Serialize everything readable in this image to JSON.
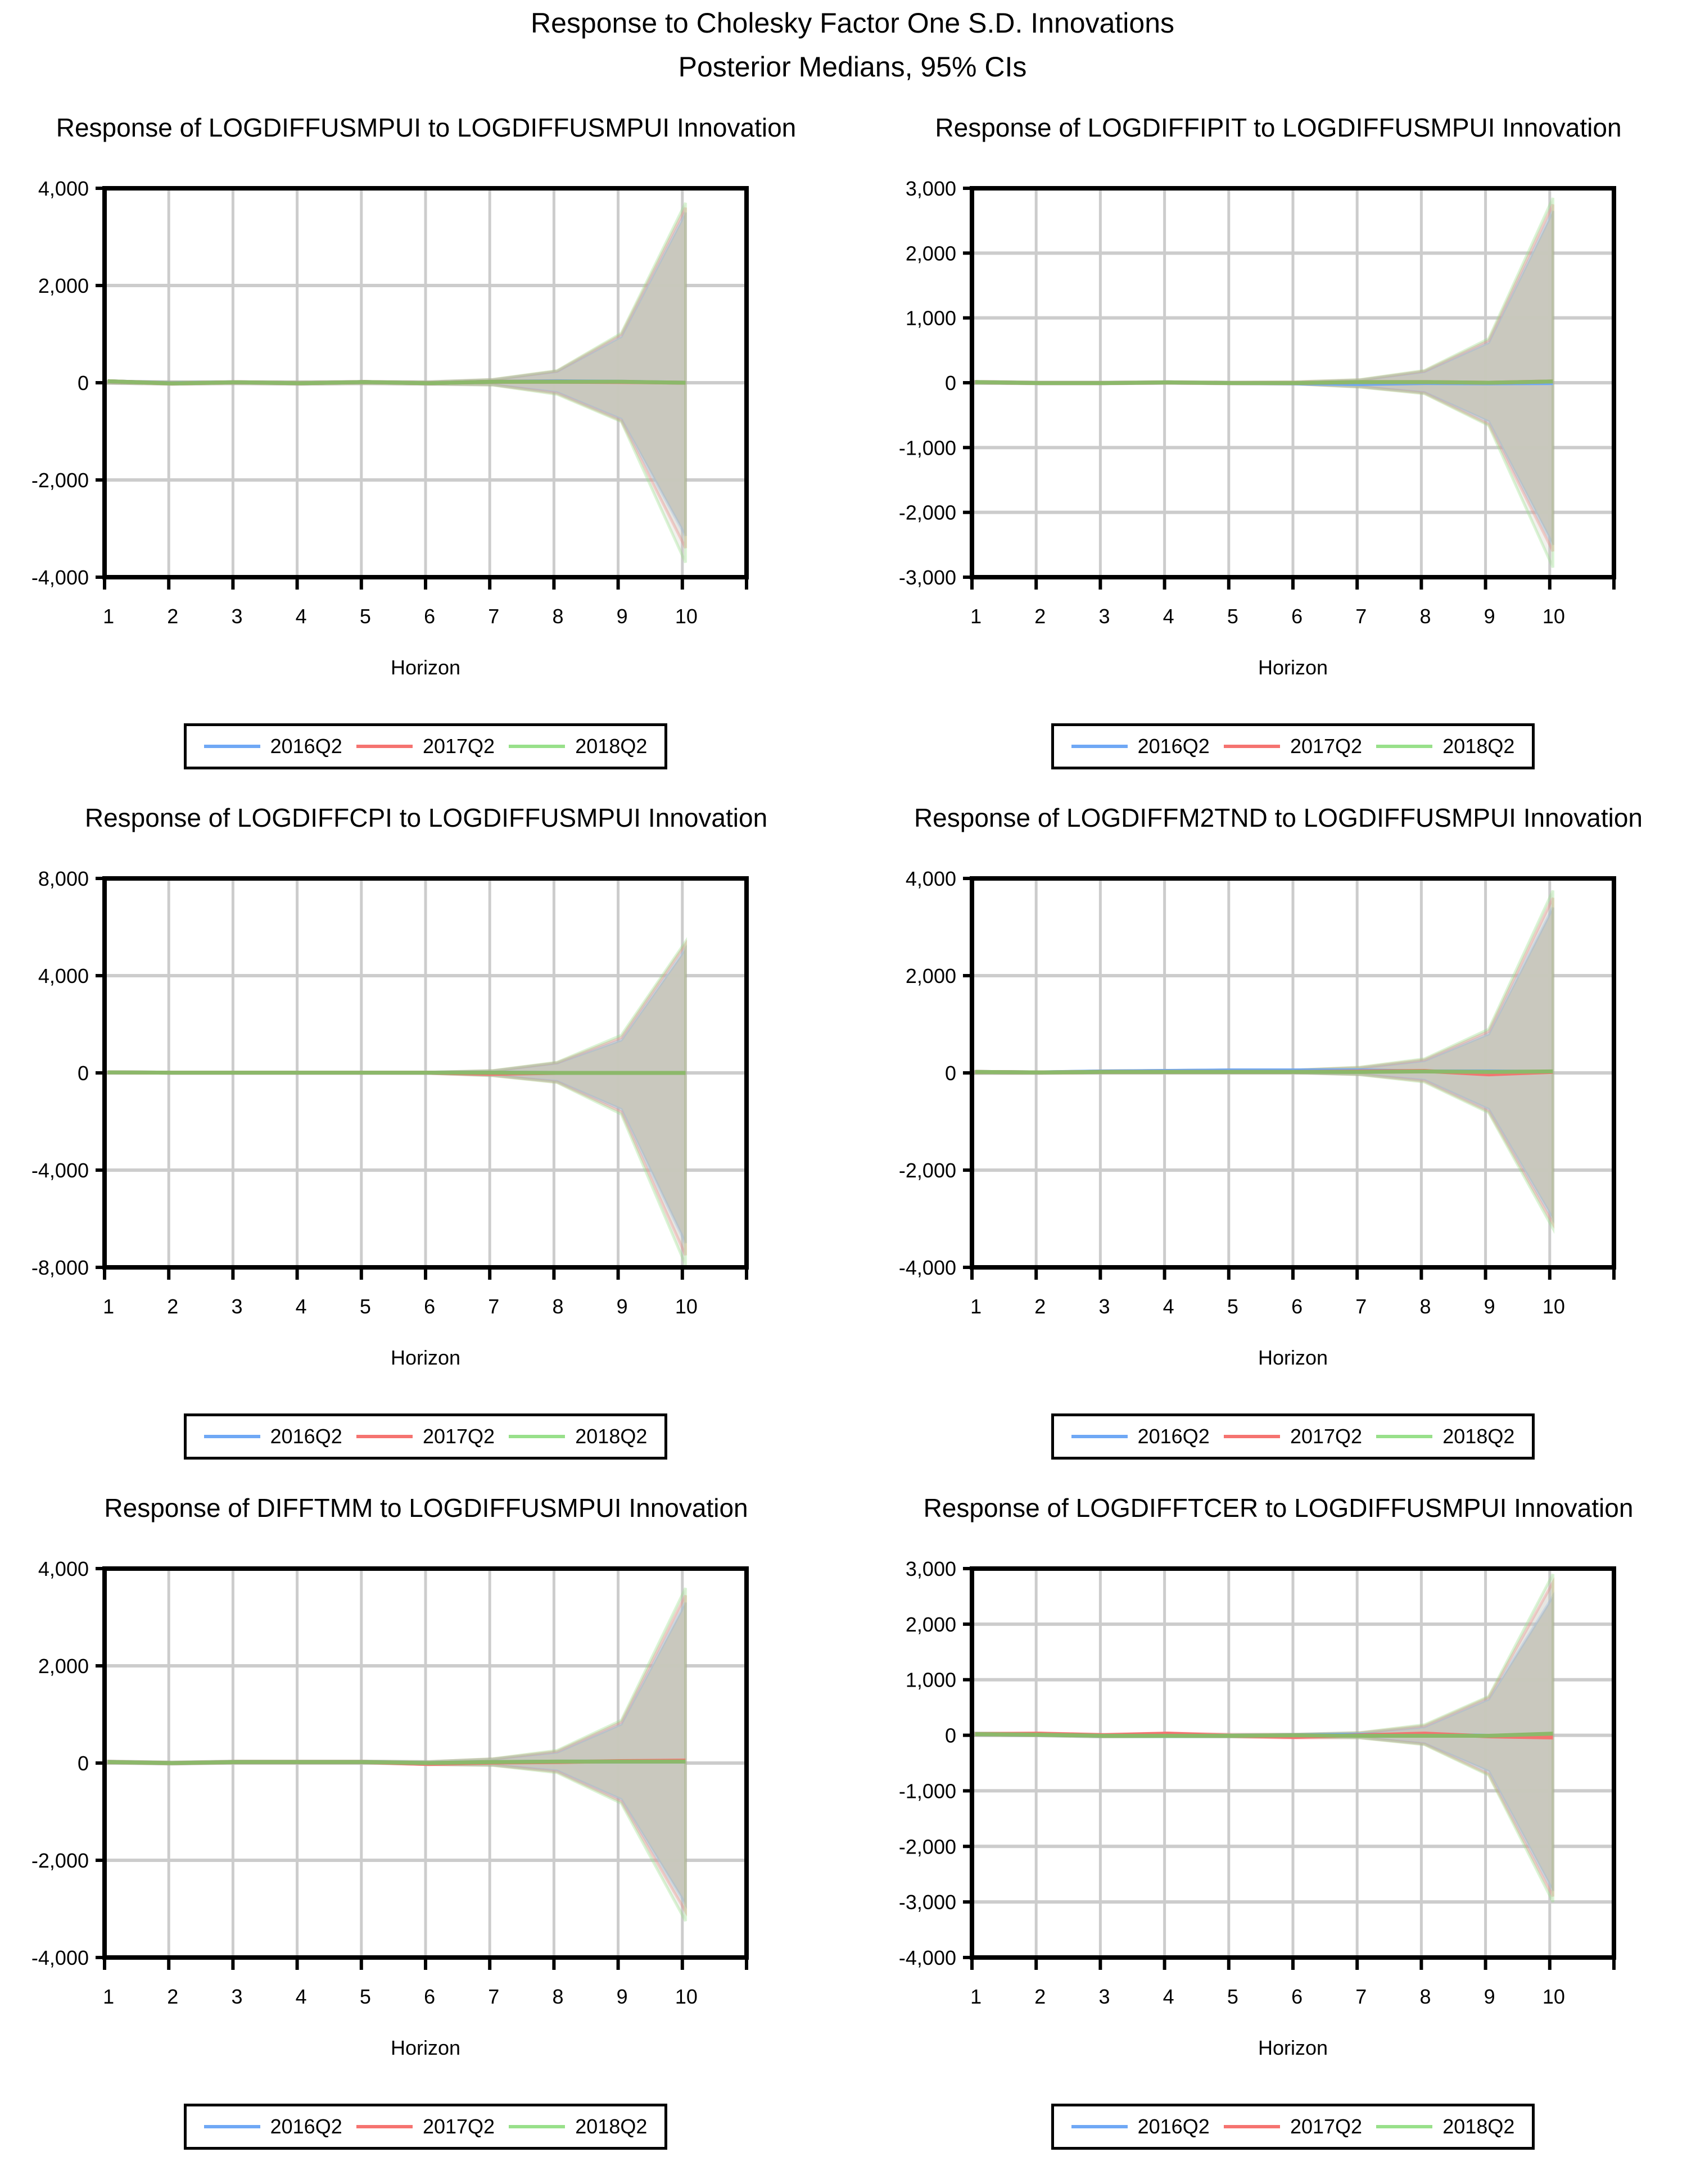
{
  "header": {
    "title": "Response to Cholesky Factor One S.D. Innovations",
    "subtitle": "Posterior Medians, 95% CIs"
  },
  "legend": {
    "items": [
      {
        "label": "2016Q2",
        "color": "#6fa8f5"
      },
      {
        "label": "2017Q2",
        "color": "#f57370"
      },
      {
        "label": "2018Q2",
        "color": "#98e08a"
      }
    ]
  },
  "colors": {
    "band_fill": "#c8c7bd",
    "grid": "#cccccc",
    "frame": "#000000",
    "median_overlay": "#8cb86a"
  },
  "chart_data": [
    {
      "type": "line",
      "title": "Response of LOGDIFFUSMPUI to LOGDIFFUSMPUI Innovation",
      "xlabel": "Horizon",
      "ylabel": "",
      "x": [
        1,
        2,
        3,
        4,
        5,
        6,
        7,
        8,
        9,
        10
      ],
      "yticks": [
        4000,
        2000,
        0,
        -2000,
        -4000
      ],
      "ytick_labels": [
        "4,000",
        "2,000",
        "0",
        "-2,000",
        "-4,000"
      ],
      "ylim": [
        -4000,
        4000
      ],
      "grid": true,
      "legend_position": "bottom",
      "series": [
        {
          "name": "2016Q2",
          "median": [
            30,
            -10,
            10,
            -10,
            15,
            -10,
            20,
            30,
            20,
            0
          ],
          "upper": [
            30,
            20,
            20,
            20,
            25,
            20,
            60,
            230,
            950,
            3500
          ],
          "lower": [
            -10,
            -30,
            -20,
            -30,
            -20,
            -30,
            -40,
            -200,
            -750,
            -3150
          ]
        },
        {
          "name": "2017Q2",
          "median": [
            30,
            -15,
            10,
            -10,
            15,
            -10,
            20,
            20,
            15,
            0
          ],
          "upper": [
            30,
            20,
            20,
            20,
            25,
            20,
            65,
            240,
            990,
            3600
          ],
          "lower": [
            -10,
            -30,
            -20,
            -30,
            -20,
            -30,
            -45,
            -220,
            -780,
            -3400
          ]
        },
        {
          "name": "2018Q2",
          "median": [
            30,
            -15,
            10,
            -10,
            15,
            -10,
            20,
            20,
            20,
            0
          ],
          "upper": [
            30,
            20,
            20,
            20,
            25,
            20,
            70,
            250,
            1020,
            3700
          ],
          "lower": [
            -10,
            -30,
            -20,
            -30,
            -20,
            -30,
            -50,
            -240,
            -800,
            -3700
          ]
        }
      ]
    },
    {
      "type": "line",
      "title": "Response of LOGDIFFIPIT to LOGDIFFUSMPUI Innovation",
      "xlabel": "Horizon",
      "ylabel": "",
      "x": [
        1,
        2,
        3,
        4,
        5,
        6,
        7,
        8,
        9,
        10
      ],
      "yticks": [
        3000,
        2000,
        1000,
        0,
        -1000,
        -2000,
        -3000
      ],
      "ytick_labels": [
        "3,000",
        "2,000",
        "1,000",
        "0",
        "-1,000",
        "-2,000",
        "-3,000"
      ],
      "ylim": [
        -3000,
        3000
      ],
      "grid": true,
      "legend_position": "bottom",
      "series": [
        {
          "name": "2016Q2",
          "median": [
            10,
            -5,
            -5,
            5,
            -5,
            -10,
            -20,
            -5,
            -10,
            -5
          ],
          "upper": [
            20,
            10,
            10,
            15,
            10,
            10,
            40,
            170,
            620,
            2650
          ],
          "lower": [
            -10,
            -15,
            -15,
            -10,
            -15,
            -20,
            -60,
            -150,
            -600,
            -2500
          ]
        },
        {
          "name": "2017Q2",
          "median": [
            10,
            -5,
            -5,
            5,
            -5,
            -5,
            10,
            10,
            0,
            20
          ],
          "upper": [
            20,
            10,
            10,
            15,
            10,
            15,
            45,
            180,
            650,
            2750
          ],
          "lower": [
            -10,
            -15,
            -15,
            -10,
            -15,
            -20,
            -65,
            -160,
            -640,
            -2600
          ]
        },
        {
          "name": "2018Q2",
          "median": [
            10,
            -5,
            -5,
            5,
            -5,
            -5,
            10,
            10,
            0,
            20
          ],
          "upper": [
            20,
            10,
            10,
            15,
            10,
            15,
            50,
            190,
            680,
            2850
          ],
          "lower": [
            -10,
            -15,
            -15,
            -10,
            -15,
            -20,
            -70,
            -170,
            -660,
            -2850
          ]
        }
      ]
    },
    {
      "type": "line",
      "title": "Response of LOGDIFFCPI to LOGDIFFUSMPUI Innovation",
      "xlabel": "Horizon",
      "ylabel": "",
      "x": [
        1,
        2,
        3,
        4,
        5,
        6,
        7,
        8,
        9,
        10
      ],
      "yticks": [
        8000,
        4000,
        0,
        -4000,
        -8000
      ],
      "ytick_labels": [
        "8,000",
        "4,000",
        "0",
        "-4,000",
        "-8,000"
      ],
      "ylim": [
        -8000,
        8000
      ],
      "grid": true,
      "legend_position": "bottom",
      "series": [
        {
          "name": "2016Q2",
          "median": [
            20,
            10,
            10,
            10,
            10,
            10,
            10,
            0,
            0,
            0
          ],
          "upper": [
            40,
            30,
            30,
            30,
            30,
            30,
            80,
            400,
            1350,
            5100
          ],
          "lower": [
            -10,
            -10,
            -10,
            -10,
            -10,
            -20,
            -100,
            -350,
            -1500,
            -7000
          ]
        },
        {
          "name": "2017Q2",
          "median": [
            20,
            10,
            10,
            10,
            10,
            10,
            -40,
            0,
            0,
            0
          ],
          "upper": [
            40,
            30,
            30,
            30,
            30,
            30,
            90,
            420,
            1450,
            5300
          ],
          "lower": [
            -10,
            -10,
            -10,
            -10,
            -10,
            -20,
            -110,
            -380,
            -1600,
            -7500
          ]
        },
        {
          "name": "2018Q2",
          "median": [
            20,
            10,
            10,
            10,
            10,
            10,
            10,
            0,
            0,
            0
          ],
          "upper": [
            40,
            30,
            30,
            30,
            30,
            30,
            100,
            440,
            1550,
            5400
          ],
          "lower": [
            -10,
            -10,
            -10,
            -10,
            -10,
            -20,
            -120,
            -400,
            -1700,
            -7900
          ]
        }
      ]
    },
    {
      "type": "line",
      "title": "Response of LOGDIFFM2TND to LOGDIFFUSMPUI Innovation",
      "xlabel": "Horizon",
      "ylabel": "",
      "x": [
        1,
        2,
        3,
        4,
        5,
        6,
        7,
        8,
        9,
        10
      ],
      "yticks": [
        4000,
        2000,
        0,
        -2000,
        -4000
      ],
      "ytick_labels": [
        "4,000",
        "2,000",
        "0",
        "-2,000",
        "-4,000"
      ],
      "ylim": [
        -4000,
        4000
      ],
      "grid": true,
      "legend_position": "bottom",
      "series": [
        {
          "name": "2016Q2",
          "median": [
            20,
            10,
            30,
            40,
            50,
            50,
            50,
            30,
            30,
            20
          ],
          "upper": [
            30,
            20,
            40,
            50,
            60,
            60,
            100,
            250,
            800,
            3400
          ],
          "lower": [
            -10,
            -10,
            0,
            0,
            0,
            0,
            -30,
            -150,
            -750,
            -3000
          ]
        },
        {
          "name": "2017Q2",
          "median": [
            20,
            10,
            20,
            20,
            20,
            20,
            30,
            40,
            -30,
            20
          ],
          "upper": [
            30,
            20,
            40,
            50,
            60,
            60,
            110,
            270,
            850,
            3600
          ],
          "lower": [
            -10,
            -10,
            0,
            0,
            0,
            0,
            -35,
            -170,
            -790,
            -3100
          ]
        },
        {
          "name": "2018Q2",
          "median": [
            20,
            10,
            20,
            20,
            20,
            20,
            20,
            30,
            20,
            30
          ],
          "upper": [
            30,
            20,
            40,
            50,
            60,
            60,
            120,
            290,
            900,
            3750
          ],
          "lower": [
            -10,
            -10,
            0,
            0,
            0,
            0,
            -40,
            -190,
            -820,
            -3200
          ]
        }
      ]
    },
    {
      "type": "line",
      "title": "Response of DIFFTMM to LOGDIFFUSMPUI Innovation",
      "xlabel": "Horizon",
      "ylabel": "",
      "x": [
        1,
        2,
        3,
        4,
        5,
        6,
        7,
        8,
        9,
        10
      ],
      "yticks": [
        4000,
        2000,
        0,
        -2000,
        -4000
      ],
      "ytick_labels": [
        "4,000",
        "2,000",
        "0",
        "-2,000",
        "-4,000"
      ],
      "ylim": [
        -4000,
        4000
      ],
      "grid": true,
      "legend_position": "bottom",
      "series": [
        {
          "name": "2016Q2",
          "median": [
            20,
            0,
            20,
            20,
            20,
            0,
            20,
            30,
            30,
            30
          ],
          "upper": [
            40,
            20,
            40,
            40,
            40,
            30,
            80,
            220,
            800,
            3300
          ],
          "lower": [
            0,
            -20,
            0,
            0,
            0,
            -30,
            -40,
            -160,
            -750,
            -2900
          ]
        },
        {
          "name": "2017Q2",
          "median": [
            20,
            0,
            20,
            20,
            20,
            -20,
            10,
            20,
            40,
            50
          ],
          "upper": [
            40,
            20,
            40,
            40,
            40,
            30,
            85,
            240,
            840,
            3450
          ],
          "lower": [
            0,
            -20,
            0,
            0,
            0,
            -30,
            -45,
            -180,
            -790,
            -3050
          ]
        },
        {
          "name": "2018Q2",
          "median": [
            20,
            0,
            20,
            20,
            20,
            0,
            20,
            30,
            30,
            30
          ],
          "upper": [
            40,
            20,
            40,
            40,
            40,
            30,
            90,
            260,
            880,
            3600
          ],
          "lower": [
            0,
            -20,
            0,
            0,
            0,
            -30,
            -50,
            -200,
            -830,
            -3250
          ]
        }
      ]
    },
    {
      "type": "line",
      "title": "Response of LOGDIFFTCER to LOGDIFFUSMPUI Innovation",
      "xlabel": "Horizon",
      "ylabel": "",
      "x": [
        1,
        2,
        3,
        4,
        5,
        6,
        7,
        8,
        9,
        10
      ],
      "yticks": [
        3000,
        2000,
        1000,
        0,
        -1000,
        -2000,
        -3000,
        -4000
      ],
      "ytick_labels": [
        "3,000",
        "2,000",
        "1,000",
        "0",
        "-1,000",
        "-2,000",
        "-3,000",
        "-4,000"
      ],
      "ylim": [
        -4000,
        3000
      ],
      "grid": true,
      "legend_position": "bottom",
      "series": [
        {
          "name": "2016Q2",
          "median": [
            20,
            10,
            -10,
            -10,
            -10,
            0,
            10,
            10,
            -10,
            0
          ],
          "upper": [
            40,
            30,
            10,
            20,
            10,
            20,
            40,
            150,
            650,
            2500
          ],
          "lower": [
            0,
            -10,
            -30,
            -30,
            -30,
            -30,
            -40,
            -150,
            -650,
            -2800
          ]
        },
        {
          "name": "2017Q2",
          "median": [
            20,
            30,
            0,
            30,
            -10,
            -30,
            0,
            30,
            -20,
            -40
          ],
          "upper": [
            40,
            40,
            20,
            40,
            20,
            20,
            45,
            170,
            680,
            2750
          ],
          "lower": [
            0,
            -10,
            -30,
            -20,
            -30,
            -50,
            -45,
            -160,
            -700,
            -2900
          ]
        },
        {
          "name": "2018Q2",
          "median": [
            20,
            10,
            -10,
            -10,
            -10,
            0,
            -10,
            -10,
            -10,
            30
          ],
          "upper": [
            40,
            30,
            10,
            20,
            10,
            20,
            50,
            190,
            700,
            2900
          ],
          "lower": [
            0,
            -10,
            -30,
            -30,
            -30,
            -30,
            -50,
            -170,
            -720,
            -3000
          ]
        }
      ]
    }
  ]
}
